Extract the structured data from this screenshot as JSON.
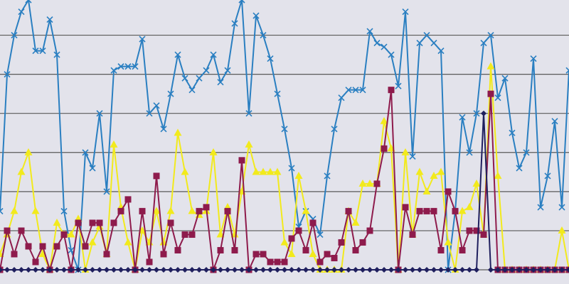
{
  "chart_data": {
    "type": "line",
    "x": [
      0,
      1,
      2,
      3,
      4,
      5,
      6,
      7,
      8,
      9,
      10,
      11,
      12,
      13,
      14,
      15,
      16,
      17,
      18,
      19,
      20,
      21,
      22,
      23,
      24,
      25,
      26,
      27,
      28,
      29,
      30,
      31,
      32,
      33,
      34,
      35,
      36,
      37,
      38,
      39,
      40,
      41,
      42,
      43,
      44,
      45,
      46,
      47,
      48,
      49,
      50,
      51,
      52,
      53,
      54,
      55,
      56,
      57,
      58,
      59,
      60,
      61,
      62,
      63,
      64,
      65,
      66,
      67,
      68,
      69,
      70,
      71,
      72,
      73,
      74,
      75,
      76,
      77,
      78,
      79,
      80
    ],
    "xlim": [
      0,
      80
    ],
    "ylim": [
      0,
      6.9
    ],
    "yticks": [
      0,
      1,
      2,
      3,
      4,
      5,
      6
    ],
    "grid": true,
    "series": [
      {
        "color": "#2a7fc1",
        "marker": "x",
        "values": [
          1.5,
          5.0,
          6.0,
          6.6,
          6.9,
          5.6,
          5.6,
          6.4,
          5.5,
          1.5,
          0.5,
          0,
          3.0,
          2.6,
          4.0,
          2.0,
          5.1,
          5.2,
          5.2,
          5.2,
          5.9,
          4.0,
          4.2,
          3.6,
          4.5,
          5.5,
          4.9,
          4.6,
          4.9,
          5.1,
          5.5,
          4.8,
          5.1,
          6.3,
          6.9,
          4.0,
          6.5,
          6.0,
          5.4,
          4.5,
          3.6,
          2.6,
          1.1,
          1.5,
          1.3,
          0.9,
          2.4,
          3.6,
          4.4,
          4.6,
          4.6,
          4.6,
          6.1,
          5.8,
          5.7,
          5.5,
          4.7,
          6.6,
          2.9,
          5.8,
          6.0,
          5.8,
          5.6,
          0,
          1.5,
          3.9,
          3.0,
          4.0,
          5.8,
          6.0,
          4.4,
          4.9,
          3.5,
          2.6,
          3.0,
          5.4,
          1.6,
          2.4,
          3.8,
          1.6,
          5.1
        ]
      },
      {
        "color": "#f2ea1c",
        "marker": "triangle",
        "values": [
          0.4,
          0.9,
          1.5,
          2.5,
          3.0,
          1.5,
          0.4,
          0,
          1.2,
          0.9,
          0.9,
          1.3,
          0,
          0.7,
          1.1,
          0.4,
          3.2,
          1.6,
          0.7,
          0,
          1.0,
          0.7,
          1.5,
          0.7,
          1.5,
          3.5,
          2.5,
          1.5,
          1.4,
          1.5,
          3.0,
          0.9,
          1.6,
          0.9,
          2.0,
          3.2,
          2.5,
          2.5,
          2.5,
          2.5,
          0.7,
          0.4,
          2.4,
          1.5,
          0.4,
          0,
          0,
          0,
          0,
          1.5,
          1.2,
          2.2,
          2.2,
          2.2,
          3.8,
          3.1,
          0,
          3.0,
          0.9,
          2.5,
          2.0,
          2.4,
          2.5,
          0.7,
          0,
          1.5,
          1.6,
          2.2,
          0.9,
          5.2,
          2.4,
          0,
          0,
          0,
          0,
          0,
          0,
          0,
          0,
          1.0,
          0
        ]
      },
      {
        "color": "#8e1b4c",
        "marker": "square",
        "values": [
          0,
          1.0,
          0.4,
          1.0,
          0.6,
          0.2,
          0.6,
          0,
          0.6,
          0.9,
          0,
          1.2,
          0.6,
          1.2,
          1.2,
          0.4,
          1.2,
          1.5,
          1.8,
          0,
          1.5,
          0.2,
          2.4,
          0.4,
          1.2,
          0.5,
          0.9,
          0.9,
          1.5,
          1.6,
          0,
          0.5,
          1.5,
          0.5,
          2.8,
          0,
          0.4,
          0.4,
          0.2,
          0.2,
          0.2,
          0.8,
          1.0,
          0.5,
          1.2,
          0.2,
          0.4,
          0.3,
          0.7,
          1.5,
          0.5,
          0.7,
          1.0,
          2.2,
          3.1,
          4.6,
          0,
          1.6,
          0.9,
          1.5,
          1.5,
          1.5,
          0.5,
          2.0,
          1.5,
          0.5,
          1.0,
          1.0,
          0.9,
          4.5,
          0,
          0,
          0,
          0,
          0,
          0,
          0,
          0,
          0,
          0,
          0
        ]
      },
      {
        "color": "#1f1f5e",
        "marker": "diamond",
        "values": [
          0,
          0,
          0,
          0,
          0,
          0,
          0,
          0,
          0,
          0,
          0,
          0,
          0,
          0,
          0,
          0,
          0,
          0,
          0,
          0,
          0,
          0,
          0,
          0,
          0,
          0,
          0,
          0,
          0,
          0,
          0,
          0,
          0,
          0,
          0,
          0,
          0,
          0,
          0,
          0,
          0,
          0,
          0,
          0,
          0,
          0,
          0,
          0,
          0,
          0,
          0,
          0,
          0,
          0,
          0,
          0,
          0,
          0,
          0,
          0,
          0,
          0,
          0,
          0,
          0,
          0,
          0,
          0,
          4.0,
          0,
          0,
          0,
          0,
          0,
          0,
          0,
          0,
          0,
          0,
          0,
          0
        ]
      }
    ]
  }
}
